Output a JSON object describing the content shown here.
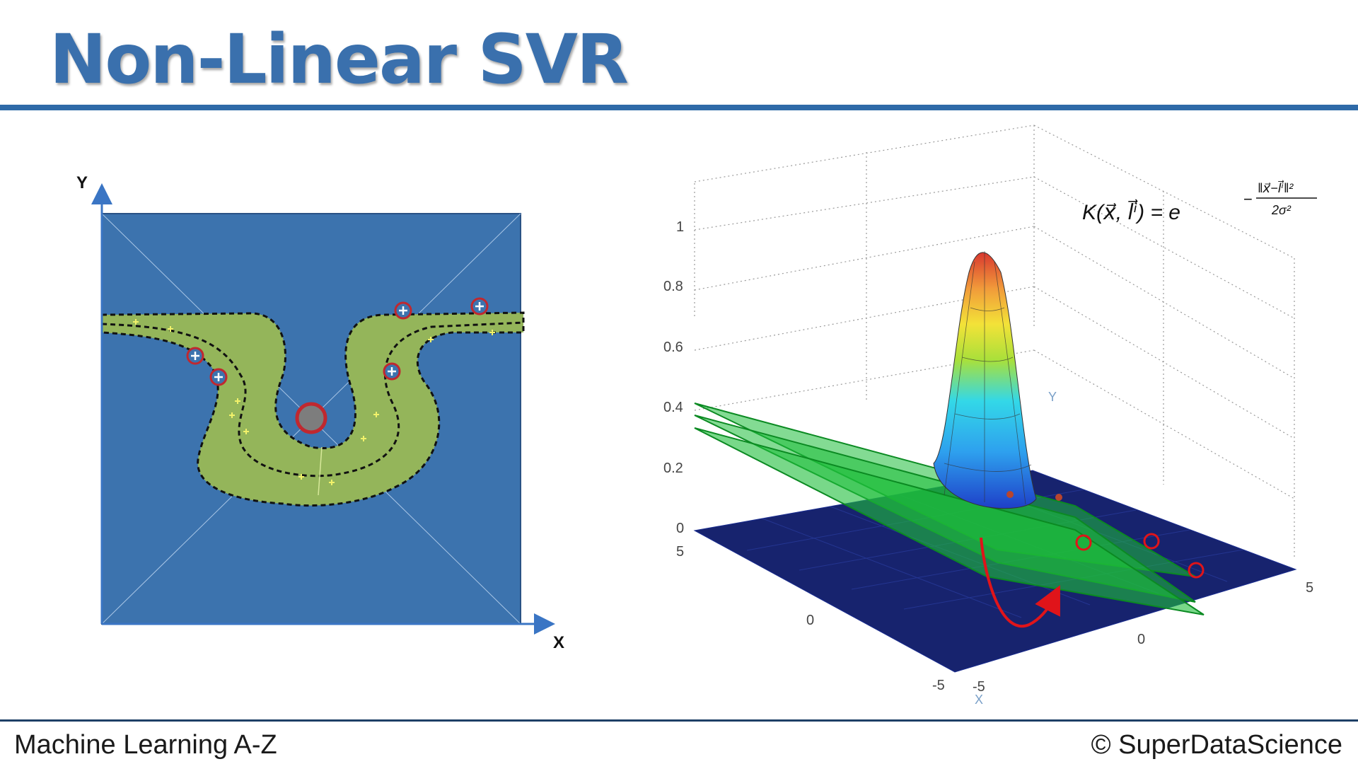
{
  "slide": {
    "title": "Non-Linear SVR",
    "footer_left": "Machine Learning A-Z",
    "footer_right": "© SuperDataScience"
  },
  "left_diagram": {
    "y_axis_label": "Y",
    "x_axis_label": "X",
    "background_color": "#3c73ae",
    "tube_color": "#94b55a",
    "support_vector_color": "#c0282f",
    "data_point_color": "#f2f26a",
    "landmark_color": "#7d7d7d"
  },
  "right_plot": {
    "formula_lhs": "K(x⃗, l⃗ⁱ) = e",
    "formula_num": "‖x⃗−l⃗ⁱ‖²",
    "formula_den": "2σ²",
    "formula_minus": "−",
    "z_ticks": [
      "1",
      "0.8",
      "0.6",
      "0.4",
      "0.2",
      "0"
    ],
    "y_ticks": [
      "5",
      "0",
      "-5"
    ],
    "x_ticks": [
      "-5",
      "0",
      "5"
    ],
    "y_axis_label": "Y",
    "x_axis_label": "X",
    "plane_color": "#1ebe3a",
    "floor_color": "#17236e",
    "arrow_color": "#e0141a"
  }
}
